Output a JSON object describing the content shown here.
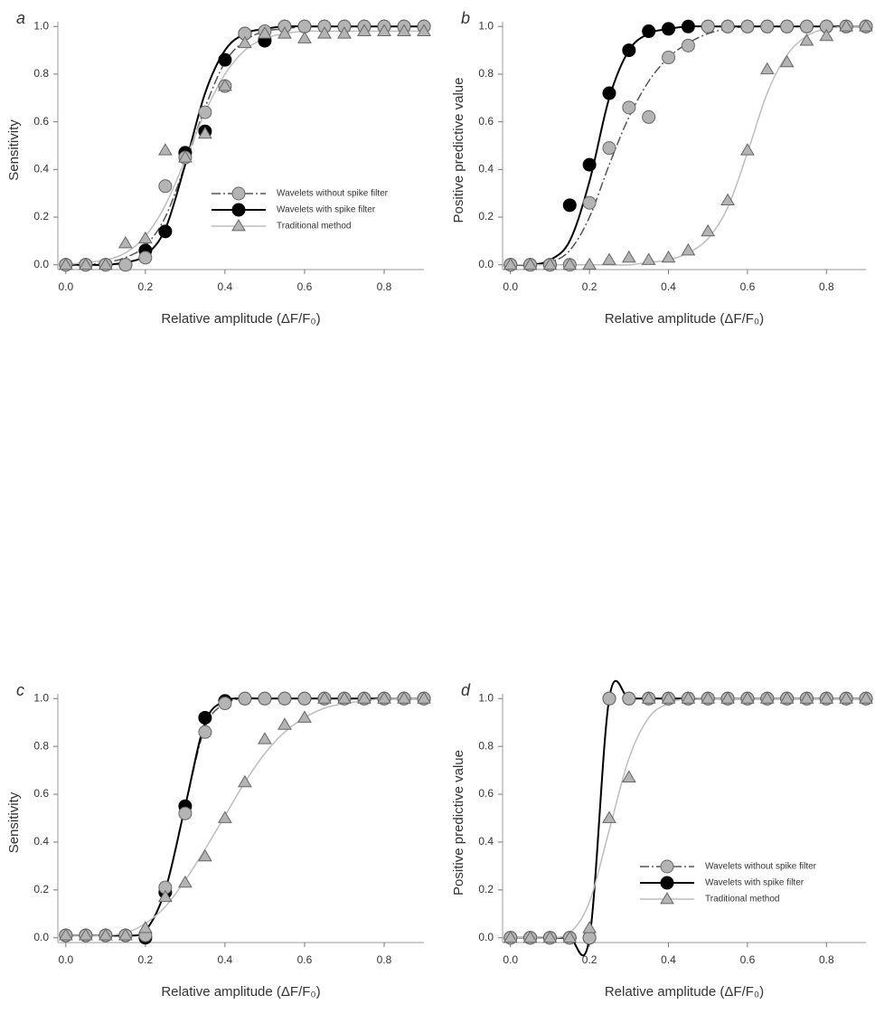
{
  "chart_data": [
    {
      "type": "scatter",
      "label": "a",
      "xlabel": "Relative amplitude (ΔF/F₀)",
      "ylabel": "Sensitivity",
      "legend": "right",
      "xlim": [
        -0.02,
        0.9
      ],
      "ylim": [
        -0.02,
        1.02
      ],
      "xticks": [
        {
          "value": 0,
          "label": "0.0"
        },
        {
          "value": 0.2,
          "label": "0.2"
        },
        {
          "value": 0.4,
          "label": "0.4"
        },
        {
          "value": 0.6,
          "label": "0.6"
        },
        {
          "value": 0.8,
          "label": "0.8"
        }
      ],
      "yticks": [
        {
          "value": 0,
          "label": "0.0"
        },
        {
          "value": 0.2,
          "label": "0.2"
        },
        {
          "value": 0.4,
          "label": "0.4"
        },
        {
          "value": 0.6,
          "label": "0.6"
        },
        {
          "value": 0.8,
          "label": "0.8"
        },
        {
          "value": 1,
          "label": "1.0"
        }
      ],
      "x": [
        0,
        0.05,
        0.1,
        0.15,
        0.2,
        0.25,
        0.3,
        0.35,
        0.4,
        0.45,
        0.5,
        0.55,
        0.6,
        0.65,
        0.7,
        0.75,
        0.8,
        0.85,
        0.9
      ],
      "series": [
        {
          "name": "Wavelets without spike filter",
          "marker": "circle",
          "color": "#b4b4b4",
          "line_color": "#555555",
          "dash": true,
          "values": [
            0,
            0,
            0,
            0,
            0.03,
            0.33,
            0.45,
            0.64,
            0.75,
            0.97,
            0.98,
            1,
            1,
            1,
            1,
            1,
            1,
            1,
            1
          ],
          "fit": [
            0,
            0,
            0.01,
            0.03,
            0.08,
            0.2,
            0.42,
            0.66,
            0.85,
            0.94,
            0.98,
            0.99,
            1,
            1,
            1,
            1,
            1,
            1,
            1
          ]
        },
        {
          "name": "Wavelets with spike filter",
          "marker": "circle",
          "color": "#000000",
          "line_color": "#000000",
          "dash": false,
          "values": [
            0,
            0,
            0,
            0,
            0.06,
            0.14,
            0.47,
            0.56,
            0.86,
            0.97,
            0.94,
            1,
            1,
            1,
            1,
            1,
            1,
            1,
            1
          ],
          "fit": [
            0,
            0,
            0,
            0.01,
            0.04,
            0.15,
            0.42,
            0.72,
            0.9,
            0.97,
            0.99,
            1,
            1,
            1,
            1,
            1,
            1,
            1,
            1
          ]
        },
        {
          "name": "Traditional method",
          "marker": "triangle",
          "color": "#b4b4b4",
          "line_color": "#bdbdbd",
          "dash": false,
          "values": [
            0,
            0,
            0,
            0.09,
            0.11,
            0.48,
            0.45,
            0.55,
            0.75,
            0.93,
            0.97,
            0.97,
            0.95,
            0.97,
            0.97,
            0.98,
            0.98,
            0.98,
            0.98
          ],
          "fit": [
            0,
            0.01,
            0.02,
            0.05,
            0.12,
            0.25,
            0.44,
            0.64,
            0.8,
            0.9,
            0.95,
            0.97,
            0.98,
            0.98,
            0.98,
            0.98,
            0.98,
            0.98,
            0.98
          ]
        }
      ]
    },
    {
      "type": "scatter",
      "label": "b",
      "xlabel": "Relative amplitude (ΔF/F₀)",
      "ylabel": "Positive predictive value",
      "xlim": [
        -0.02,
        0.9
      ],
      "ylim": [
        -0.02,
        1.02
      ],
      "xticks": [
        {
          "value": 0,
          "label": "0.0"
        },
        {
          "value": 0.2,
          "label": "0.2"
        },
        {
          "value": 0.4,
          "label": "0.4"
        },
        {
          "value": 0.6,
          "label": "0.6"
        },
        {
          "value": 0.8,
          "label": "0.8"
        }
      ],
      "yticks": [
        {
          "value": 0,
          "label": "0.0"
        },
        {
          "value": 0.2,
          "label": "0.2"
        },
        {
          "value": 0.4,
          "label": "0.4"
        },
        {
          "value": 0.6,
          "label": "0.6"
        },
        {
          "value": 0.8,
          "label": "0.8"
        },
        {
          "value": 1,
          "label": "1.0"
        }
      ],
      "x": [
        0,
        0.05,
        0.1,
        0.15,
        0.2,
        0.25,
        0.3,
        0.35,
        0.4,
        0.45,
        0.5,
        0.55,
        0.6,
        0.65,
        0.7,
        0.75,
        0.8,
        0.85,
        0.9
      ],
      "series": [
        {
          "marker": "circle",
          "color": "#b4b4b4",
          "line_color": "#555555",
          "dash": true,
          "values": [
            0,
            0,
            0,
            0,
            0.26,
            0.49,
            0.66,
            0.62,
            0.87,
            0.92,
            1,
            1,
            1,
            1,
            1,
            1,
            1,
            1,
            1
          ],
          "fit": [
            0,
            0,
            0.01,
            0.06,
            0.2,
            0.42,
            0.62,
            0.77,
            0.87,
            0.93,
            0.97,
            0.99,
            1,
            1,
            1,
            1,
            1,
            1,
            1
          ]
        },
        {
          "marker": "circle",
          "color": "#000000",
          "line_color": "#000000",
          "dash": false,
          "values": [
            0,
            0,
            0,
            0.25,
            0.42,
            0.72,
            0.9,
            0.98,
            0.99,
            1,
            1,
            1,
            1,
            1,
            1,
            1,
            1,
            1,
            1
          ],
          "fit": [
            0,
            0,
            0.02,
            0.1,
            0.35,
            0.7,
            0.9,
            0.97,
            0.99,
            1,
            1,
            1,
            1,
            1,
            1,
            1,
            1,
            1,
            1
          ]
        },
        {
          "marker": "triangle",
          "color": "#b4b4b4",
          "line_color": "#bdbdbd",
          "dash": false,
          "values": [
            0,
            0,
            0,
            0,
            0,
            0.02,
            0.03,
            0.02,
            0.03,
            0.06,
            0.14,
            0.27,
            0.48,
            0.82,
            0.85,
            0.94,
            0.96,
            1,
            1
          ],
          "fit": [
            0,
            0,
            0,
            0,
            0,
            0,
            0,
            0.01,
            0.02,
            0.05,
            0.11,
            0.24,
            0.47,
            0.72,
            0.88,
            0.96,
            0.99,
            1,
            1
          ]
        }
      ]
    },
    {
      "type": "scatter",
      "label": "c",
      "xlabel": "Relative amplitude (ΔF/F₀)",
      "ylabel": "Sensitivity",
      "xlim": [
        -0.02,
        0.9
      ],
      "ylim": [
        -0.02,
        1.02
      ],
      "xticks": [
        {
          "value": 0,
          "label": "0.0"
        },
        {
          "value": 0.2,
          "label": "0.2"
        },
        {
          "value": 0.4,
          "label": "0.4"
        },
        {
          "value": 0.6,
          "label": "0.6"
        },
        {
          "value": 0.8,
          "label": "0.8"
        }
      ],
      "yticks": [
        {
          "value": 0,
          "label": "0.0"
        },
        {
          "value": 0.2,
          "label": "0.2"
        },
        {
          "value": 0.4,
          "label": "0.4"
        },
        {
          "value": 0.6,
          "label": "0.6"
        },
        {
          "value": 0.8,
          "label": "0.8"
        },
        {
          "value": 1,
          "label": "1.0"
        }
      ],
      "x": [
        0,
        0.05,
        0.1,
        0.15,
        0.2,
        0.25,
        0.3,
        0.35,
        0.4,
        0.45,
        0.5,
        0.55,
        0.6,
        0.65,
        0.7,
        0.75,
        0.8,
        0.85,
        0.9
      ],
      "series": [
        {
          "marker": "circle",
          "color": "#b4b4b4",
          "line_color": "#555555",
          "dash": true,
          "values": [
            0.01,
            0.01,
            0.01,
            0.01,
            0.01,
            0.21,
            0.52,
            0.86,
            0.98,
            1,
            1,
            1,
            1,
            1,
            1,
            1,
            1,
            1,
            1
          ],
          "fit": [
            0.01,
            0.01,
            0.01,
            0.01,
            0.03,
            0.2,
            0.55,
            0.88,
            0.98,
            1,
            1,
            1,
            1,
            1,
            1,
            1,
            1,
            1,
            1
          ]
        },
        {
          "marker": "circle",
          "color": "#000000",
          "line_color": "#000000",
          "dash": false,
          "values": [
            0.01,
            0.01,
            0.01,
            0.01,
            0,
            0.19,
            0.55,
            0.92,
            0.99,
            1,
            1,
            1,
            1,
            1,
            1,
            1,
            1,
            1,
            1
          ],
          "fit": [
            0.01,
            0.01,
            0.01,
            0.01,
            0.03,
            0.2,
            0.55,
            0.9,
            0.99,
            1,
            1,
            1,
            1,
            1,
            1,
            1,
            1,
            1,
            1
          ]
        },
        {
          "marker": "triangle",
          "color": "#b4b4b4",
          "line_color": "#bdbdbd",
          "dash": false,
          "values": [
            0.01,
            0.01,
            0.01,
            0.01,
            0.04,
            0.17,
            0.23,
            0.34,
            0.5,
            0.65,
            0.83,
            0.89,
            0.92,
            1,
            1,
            1,
            1,
            1,
            1
          ],
          "fit": [
            0.01,
            0.01,
            0.01,
            0.02,
            0.06,
            0.13,
            0.24,
            0.37,
            0.51,
            0.65,
            0.77,
            0.86,
            0.92,
            0.96,
            0.98,
            0.99,
            1,
            1,
            1
          ]
        }
      ]
    },
    {
      "type": "scatter",
      "label": "d",
      "xlabel": "Relative amplitude (ΔF/F₀)",
      "ylabel": "Positive predictive value",
      "legend": "lower right",
      "xlim": [
        -0.02,
        0.9
      ],
      "ylim": [
        -0.02,
        1.02
      ],
      "xticks": [
        {
          "value": 0,
          "label": "0.0"
        },
        {
          "value": 0.2,
          "label": "0.2"
        },
        {
          "value": 0.4,
          "label": "0.4"
        },
        {
          "value": 0.6,
          "label": "0.6"
        },
        {
          "value": 0.8,
          "label": "0.8"
        }
      ],
      "yticks": [
        {
          "value": 0,
          "label": "0.0"
        },
        {
          "value": 0.2,
          "label": "0.2"
        },
        {
          "value": 0.4,
          "label": "0.4"
        },
        {
          "value": 0.6,
          "label": "0.6"
        },
        {
          "value": 0.8,
          "label": "0.8"
        },
        {
          "value": 1,
          "label": "1.0"
        }
      ],
      "x": [
        0,
        0.05,
        0.1,
        0.15,
        0.2,
        0.25,
        0.3,
        0.35,
        0.4,
        0.45,
        0.5,
        0.55,
        0.6,
        0.65,
        0.7,
        0.75,
        0.8,
        0.85,
        0.9
      ],
      "series": [
        {
          "name": "Wavelets without spike filter",
          "marker": "circle",
          "color": "#b4b4b4",
          "line_color": "#555555",
          "dash": true,
          "values": [
            0,
            0,
            0,
            0,
            0,
            1,
            1,
            1,
            1,
            1,
            1,
            1,
            1,
            1,
            1,
            1,
            1,
            1,
            1
          ],
          "fit": [
            0,
            0,
            0,
            0,
            0,
            1,
            1,
            1,
            1,
            1,
            1,
            1,
            1,
            1,
            1,
            1,
            1,
            1,
            1
          ]
        },
        {
          "name": "Wavelets with spike filter",
          "marker": "circle",
          "color": "#000000",
          "line_color": "#000000",
          "dash": false,
          "values": [
            0,
            0,
            0,
            0,
            0,
            1,
            1,
            1,
            1,
            1,
            1,
            1,
            1,
            1,
            1,
            1,
            1,
            1,
            1
          ],
          "fit": [
            0,
            0,
            0,
            0,
            0,
            1,
            1,
            1,
            1,
            1,
            1,
            1,
            1,
            1,
            1,
            1,
            1,
            1,
            1
          ]
        },
        {
          "name": "Traditional method",
          "marker": "triangle",
          "color": "#b4b4b4",
          "line_color": "#bdbdbd",
          "dash": false,
          "values": [
            0,
            0,
            0,
            0,
            0.04,
            0.5,
            0.67,
            1,
            1,
            1,
            1,
            1,
            1,
            1,
            1,
            1,
            1,
            1,
            1
          ],
          "fit": [
            0,
            0,
            0,
            0.02,
            0.15,
            0.45,
            0.75,
            0.92,
            0.98,
            1,
            1,
            1,
            1,
            1,
            1,
            1,
            1,
            1,
            1
          ]
        }
      ]
    }
  ]
}
